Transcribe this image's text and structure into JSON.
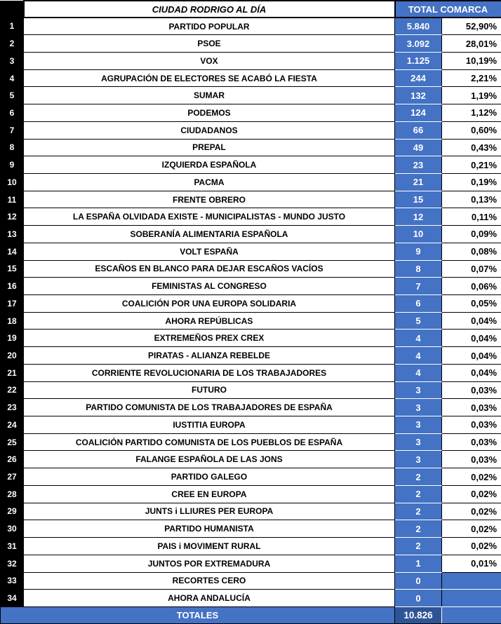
{
  "header": {
    "title": "CIUDAD RODRIGO AL DÍA",
    "total_header": "TOTAL COMARCA"
  },
  "footer": {
    "label": "TOTALES",
    "total_votes": "10.826",
    "total_pct": ""
  },
  "colors": {
    "accent_blue": "#4472C4",
    "total_dark_blue": "#2F5496",
    "row_number_bg": "#000000",
    "text_on_blue": "#FFFFFF",
    "text_on_white": "#000000"
  },
  "chart_data": {
    "type": "table",
    "title": "CIUDAD RODRIGO AL DÍA",
    "subtitle": "TOTAL COMARCA",
    "columns": [
      "rank",
      "party",
      "votes_total_comarca",
      "pct_total_comarca"
    ],
    "rows": [
      [
        "1",
        "PARTIDO POPULAR",
        "5.840",
        "52,90%"
      ],
      [
        "2",
        "PSOE",
        "3.092",
        "28,01%"
      ],
      [
        "3",
        "VOX",
        "1.125",
        "10,19%"
      ],
      [
        "4",
        "AGRUPACIÓN DE ELECTORES SE ACABÓ LA FIESTA",
        "244",
        "2,21%"
      ],
      [
        "5",
        "SUMAR",
        "132",
        "1,19%"
      ],
      [
        "6",
        "PODEMOS",
        "124",
        "1,12%"
      ],
      [
        "7",
        "CIUDADANOS",
        "66",
        "0,60%"
      ],
      [
        "8",
        "PREPAL",
        "49",
        "0,43%"
      ],
      [
        "9",
        "IZQUIERDA ESPAÑOLA",
        "23",
        "0,21%"
      ],
      [
        "10",
        "PACMA",
        "21",
        "0,19%"
      ],
      [
        "11",
        "FRENTE OBRERO",
        "15",
        "0,13%"
      ],
      [
        "12",
        "LA ESPAÑA OLVIDADA EXISTE - MUNICIPALISTAS - MUNDO JUSTO",
        "12",
        "0,11%"
      ],
      [
        "13",
        "SOBERANÍA ALIMENTARIA ESPAÑOLA",
        "10",
        "0,09%"
      ],
      [
        "14",
        "VOLT ESPAÑA",
        "9",
        "0,08%"
      ],
      [
        "15",
        "ESCAÑOS EN BLANCO PARA DEJAR ESCAÑOS VACÍOS",
        "8",
        "0,07%"
      ],
      [
        "16",
        "FEMINISTAS AL CONGRESO",
        "7",
        "0,06%"
      ],
      [
        "17",
        "COALICIÓN POR UNA EUROPA SOLIDARIA",
        "6",
        "0,05%"
      ],
      [
        "18",
        "AHORA REPÚBLICAS",
        "5",
        "0,04%"
      ],
      [
        "19",
        "EXTREMEÑOS PREX CREX",
        "4",
        "0,04%"
      ],
      [
        "20",
        "PIRATAS - ALIANZA REBELDE",
        "4",
        "0,04%"
      ],
      [
        "21",
        "CORRIENTE REVOLUCIONARIA DE LOS TRABAJADORES",
        "4",
        "0,04%"
      ],
      [
        "22",
        "FUTURO",
        "3",
        "0,03%"
      ],
      [
        "23",
        "PARTIDO COMUNISTA DE LOS TRABAJADORES DE ESPAÑA",
        "3",
        "0,03%"
      ],
      [
        "24",
        "IUSTITIA EUROPA",
        "3",
        "0,03%"
      ],
      [
        "25",
        "COALICIÓN PARTIDO COMUNISTA DE LOS PUEBLOS DE ESPAÑA",
        "3",
        "0,03%"
      ],
      [
        "26",
        "FALANGE ESPAÑOLA DE LAS JONS",
        "3",
        "0,03%"
      ],
      [
        "27",
        "PARTIDO GALEGO",
        "2",
        "0,02%"
      ],
      [
        "28",
        "CREE EN EUROPA",
        "2",
        "0,02%"
      ],
      [
        "29",
        "JUNTS i LLIURES PER EUROPA",
        "2",
        "0,02%"
      ],
      [
        "30",
        "PARTIDO HUMANISTA",
        "2",
        "0,02%"
      ],
      [
        "31",
        "PAIS i MOVIMENT RURAL",
        "2",
        "0,02%"
      ],
      [
        "32",
        "JUNTOS POR EXTREMADURA",
        "1",
        "0,01%"
      ],
      [
        "33",
        "RECORTES CERO",
        "0",
        ""
      ],
      [
        "34",
        "AHORA ANDALUCÍA",
        "0",
        ""
      ]
    ],
    "totals": {
      "label": "TOTALES",
      "votes": "10.826"
    }
  }
}
